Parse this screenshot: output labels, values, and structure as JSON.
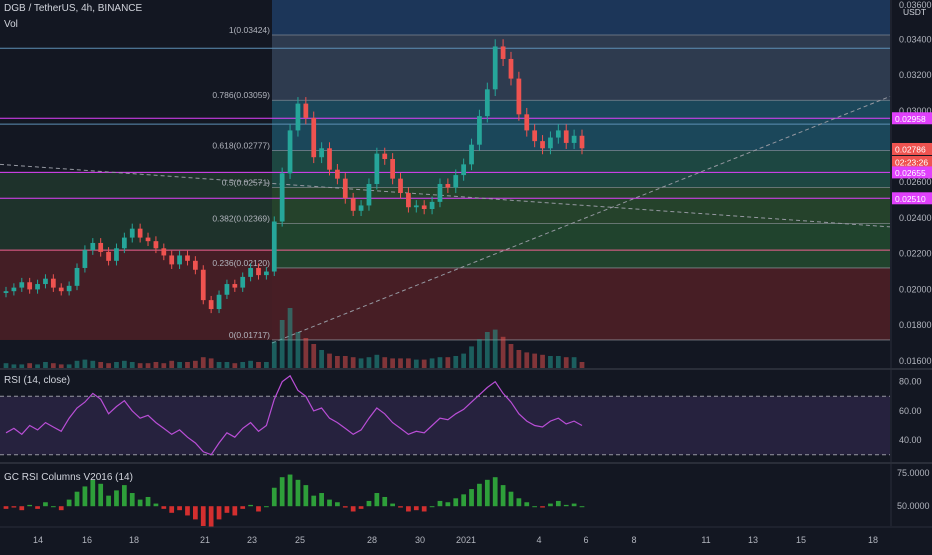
{
  "header": {
    "symbol": "DGB / TetherUS, 4h, BINANCE",
    "volume_label": "Vol",
    "currency": "USDT"
  },
  "rsi_panel": {
    "title": "RSI (14, close)",
    "levels": [
      "80.00",
      "60.00",
      "40.00"
    ]
  },
  "gc_panel": {
    "title": "GC RSI Columns V2016 (14)",
    "levels": [
      "75.0000",
      "50.0000"
    ]
  },
  "price_axis": {
    "ticks": [
      "0.03400",
      "0.03200",
      "0.03000",
      "0.02800",
      "0.02600",
      "0.02400",
      "0.02200",
      "0.02000",
      "0.01800",
      "0.01600"
    ],
    "top_partial": "0.03600"
  },
  "price_badges": {
    "level_1": "0.02958",
    "current": "0.02786",
    "countdown": "02:23:26",
    "level_2": "0.02655",
    "level_3": "0.02510"
  },
  "fib_labels": [
    "1(0.03424)",
    "0.786(0.03059)",
    "0.618(0.02777)",
    "0.5(0.02571)",
    "0.382(0.02369)",
    "0.236(0.02120)",
    "0(0.01717)"
  ],
  "time_axis": [
    "14",
    "16",
    "18",
    "21",
    "23",
    "25",
    "28",
    "30",
    "2021",
    "4",
    "6",
    "8",
    "11",
    "13",
    "15",
    "18"
  ],
  "colors": {
    "background": "#131722",
    "up": "#26a69a",
    "down": "#ef5350",
    "fib_line": "#787b86",
    "level_line": "#e040fb",
    "rsi_line": "#b94ed6"
  },
  "chart_data": [
    {
      "type": "candlestick",
      "title": "DGB / TetherUS, 4h, BINANCE",
      "y_axis": "USDT",
      "ylim": [
        0.0156,
        0.0362
      ],
      "x_axis_labels": [
        "14",
        "16",
        "18",
        "21",
        "23",
        "25",
        "28",
        "30",
        "2021",
        "4",
        "6",
        "8",
        "11",
        "13",
        "15",
        "18"
      ],
      "close_series": [
        0.0199,
        0.0201,
        0.0204,
        0.02,
        0.0203,
        0.0206,
        0.0201,
        0.0199,
        0.0202,
        0.0212,
        0.0222,
        0.0226,
        0.0221,
        0.0216,
        0.0223,
        0.0229,
        0.0234,
        0.0229,
        0.0227,
        0.0223,
        0.0219,
        0.0214,
        0.0219,
        0.0216,
        0.0211,
        0.0194,
        0.0189,
        0.0197,
        0.0203,
        0.0201,
        0.0207,
        0.0212,
        0.0208,
        0.021,
        0.0238,
        0.0265,
        0.0289,
        0.0304,
        0.0296,
        0.0274,
        0.0279,
        0.0267,
        0.0262,
        0.0251,
        0.0244,
        0.0247,
        0.0259,
        0.0276,
        0.0273,
        0.0262,
        0.0254,
        0.0246,
        0.0247,
        0.0245,
        0.0249,
        0.0259,
        0.0257,
        0.0264,
        0.027,
        0.0281,
        0.0297,
        0.0312,
        0.0336,
        0.0329,
        0.0318,
        0.0298,
        0.0289,
        0.0283,
        0.0279,
        0.0285,
        0.0289,
        0.0282,
        0.0286,
        0.0279
      ],
      "volume": [
        4,
        3,
        3,
        4,
        3,
        5,
        4,
        3,
        3,
        6,
        7,
        6,
        5,
        4,
        5,
        6,
        5,
        4,
        4,
        5,
        4,
        6,
        5,
        5,
        6,
        9,
        8,
        5,
        5,
        4,
        5,
        6,
        5,
        5,
        22,
        40,
        50,
        30,
        25,
        20,
        15,
        12,
        10,
        10,
        9,
        8,
        9,
        11,
        9,
        8,
        8,
        8,
        7,
        7,
        8,
        9,
        9,
        10,
        12,
        18,
        24,
        30,
        32,
        26,
        20,
        15,
        13,
        12,
        11,
        10,
        10,
        9,
        9,
        5
      ],
      "fibonacci": [
        {
          "ratio": 1,
          "price": 0.03424
        },
        {
          "ratio": 0.786,
          "price": 0.03059
        },
        {
          "ratio": 0.618,
          "price": 0.02777
        },
        {
          "ratio": 0.5,
          "price": 0.02571
        },
        {
          "ratio": 0.382,
          "price": 0.02369
        },
        {
          "ratio": 0.236,
          "price": 0.0212
        },
        {
          "ratio": 0,
          "price": 0.01717
        }
      ],
      "horizontal_levels": [
        0.02958,
        0.02655,
        0.0251
      ],
      "current_price": 0.02786
    },
    {
      "type": "line",
      "title": "RSI (14, close)",
      "ylim": [
        25,
        88
      ],
      "y_ticks": [
        80,
        60,
        40
      ],
      "bands": [
        70,
        30
      ],
      "values": [
        45,
        48,
        44,
        50,
        47,
        52,
        49,
        46,
        55,
        62,
        66,
        72,
        68,
        58,
        63,
        67,
        60,
        55,
        57,
        52,
        48,
        44,
        47,
        42,
        38,
        32,
        30,
        38,
        45,
        42,
        48,
        52,
        46,
        50,
        68,
        80,
        84,
        74,
        70,
        60,
        62,
        55,
        52,
        48,
        44,
        47,
        55,
        62,
        58,
        52,
        48,
        44,
        46,
        45,
        50,
        55,
        54,
        58,
        61,
        66,
        71,
        76,
        80,
        72,
        66,
        58,
        53,
        50,
        49,
        53,
        55,
        51,
        53,
        50
      ]
    },
    {
      "type": "bar",
      "title": "GC RSI Columns V2016 (14)",
      "ylim": [
        35,
        82
      ],
      "y_ticks": [
        75,
        50
      ],
      "baseline": 50,
      "values": [
        48,
        49,
        47,
        51,
        48,
        53,
        50,
        47,
        55,
        61,
        65,
        70,
        67,
        58,
        62,
        66,
        60,
        55,
        57,
        52,
        48,
        45,
        47,
        43,
        40,
        35,
        34,
        40,
        45,
        43,
        48,
        51,
        46,
        50,
        64,
        72,
        74,
        70,
        66,
        58,
        60,
        55,
        53,
        49,
        46,
        48,
        54,
        60,
        57,
        52,
        49,
        46,
        47,
        46,
        50,
        54,
        53,
        56,
        59,
        63,
        67,
        70,
        72,
        66,
        61,
        56,
        53,
        50,
        49,
        52,
        54,
        51,
        52,
        50
      ]
    }
  ]
}
